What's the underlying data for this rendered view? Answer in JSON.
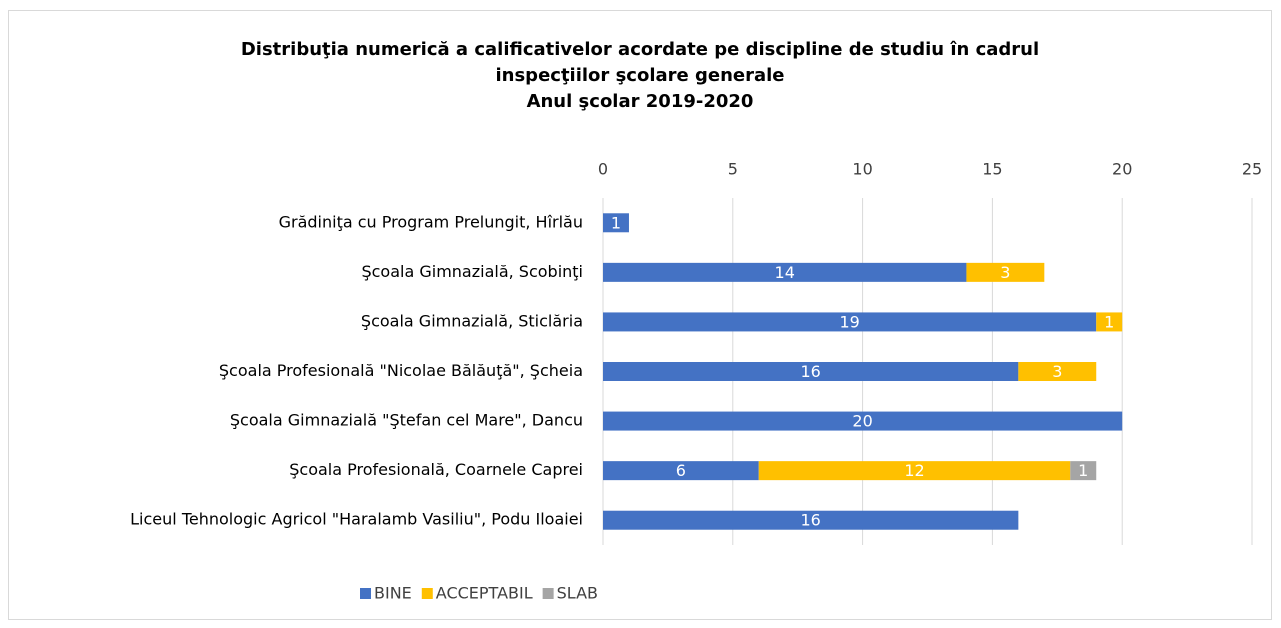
{
  "chart_data": {
    "type": "stacked-bar-horizontal",
    "title": [
      "Distribuţia numerică a calificativelor acordate pe discipline de studiu în cadrul",
      "inspecţiilor şcolare generale",
      "Anul şcolar 2019-2020"
    ],
    "categories": [
      "Grădiniţa cu Program Prelungit, Hîrlău",
      "Şcoala Gimnazială, Scobinţi",
      "Şcoala Gimnazială, Sticlăria",
      "Şcoala Profesională \"Nicolae Bălăuţă\", Şcheia",
      "Şcoala Gimnazială \"Ştefan cel Mare\", Dancu",
      "Şcoala Profesională, Coarnele Caprei",
      "Liceul Tehnologic Agricol \"Haralamb Vasiliu\", Podu Iloaiei"
    ],
    "series": [
      {
        "name": "BINE",
        "color": "#4472c4",
        "values": [
          1,
          14,
          19,
          16,
          20,
          6,
          16
        ]
      },
      {
        "name": "ACCEPTABIL",
        "color": "#ffc000",
        "values": [
          null,
          3,
          1,
          3,
          null,
          12,
          null
        ]
      },
      {
        "name": "SLAB",
        "color": "#a5a5a5",
        "values": [
          null,
          null,
          null,
          null,
          null,
          1,
          null
        ]
      }
    ],
    "xlim": [
      0,
      25
    ],
    "xticks": [
      0,
      5,
      10,
      15,
      20,
      25
    ],
    "grid": true,
    "legend": "bottom"
  }
}
